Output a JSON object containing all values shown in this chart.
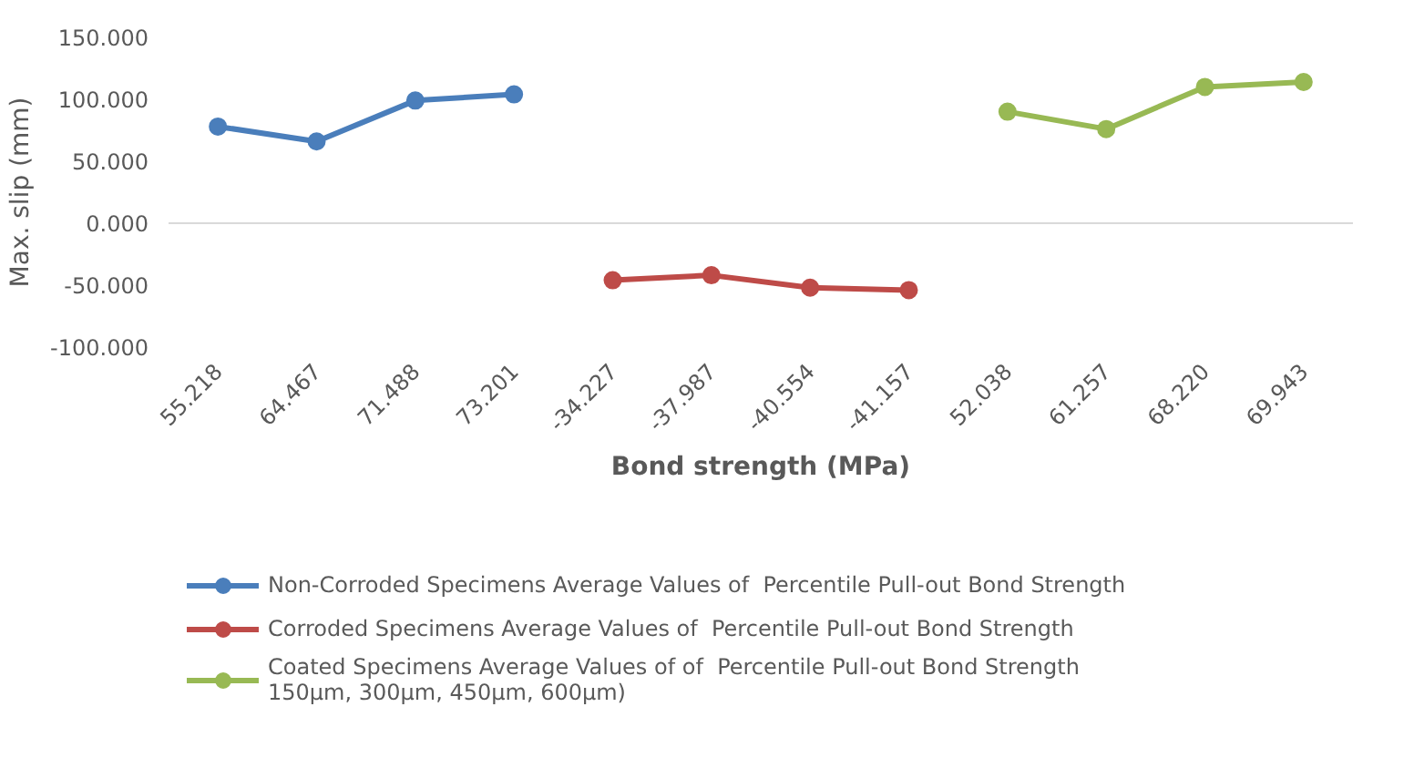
{
  "chart_data": {
    "type": "line",
    "xlabel": "Bond strength (MPa)",
    "ylabel": "Max. slip (mm)",
    "categories": [
      "55.218",
      "64.467",
      "71.488",
      "73.201",
      "-34.227",
      "-37.987",
      "-40.554",
      "-41.157",
      "52.038",
      "61.257",
      "68.220",
      "69.943"
    ],
    "series": [
      {
        "name": "Non-Corroded Specimens Average Values of  Percentile Pull-out Bond Strength",
        "color": "#4a7ebb",
        "values": [
          78,
          66,
          99,
          104,
          null,
          null,
          null,
          null,
          null,
          null,
          null,
          null
        ]
      },
      {
        "name": "Corroded Specimens Average Values of  Percentile Pull-out Bond Strength",
        "color": "#be4b48",
        "values": [
          null,
          null,
          null,
          null,
          -46,
          -42,
          -52,
          -54,
          null,
          null,
          null,
          null
        ]
      },
      {
        "name": "Coated Specimens Average Values of of  Percentile Pull-out Bond Strength 150µm, 300µm, 450µm, 600µm)",
        "color": "#98b954",
        "values": [
          null,
          null,
          null,
          null,
          null,
          null,
          null,
          null,
          90,
          76,
          110,
          114
        ]
      }
    ],
    "ylim": [
      -100,
      150
    ],
    "yticks": [
      {
        "value": -100,
        "label": "-100.000"
      },
      {
        "value": -50,
        "label": "-50.000"
      },
      {
        "value": 0,
        "label": "0.000"
      },
      {
        "value": 50,
        "label": "50.000"
      },
      {
        "value": 100,
        "label": "100.000"
      },
      {
        "value": 150,
        "label": "150.000"
      }
    ],
    "ref_lines": [
      {
        "axis": "y",
        "value": 0,
        "label": null,
        "color": "#d9d9d9"
      }
    ],
    "grid": false,
    "legend": "bottom",
    "marker": "circle",
    "line_style": "solid"
  }
}
